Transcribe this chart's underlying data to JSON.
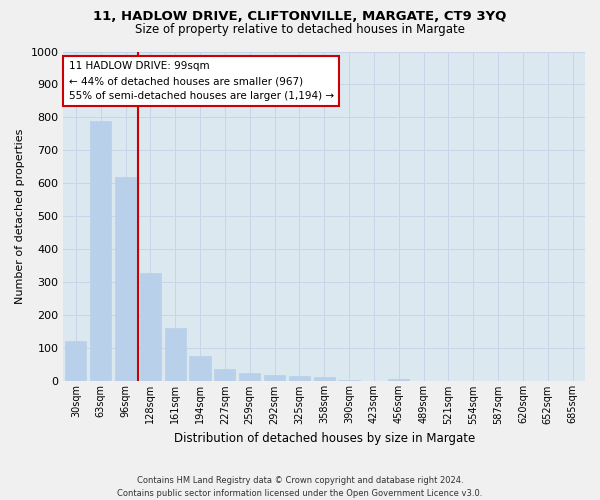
{
  "title1": "11, HADLOW DRIVE, CLIFTONVILLE, MARGATE, CT9 3YQ",
  "title2": "Size of property relative to detached houses in Margate",
  "xlabel": "Distribution of detached houses by size in Margate",
  "ylabel": "Number of detached properties",
  "categories": [
    "30sqm",
    "63sqm",
    "96sqm",
    "128sqm",
    "161sqm",
    "194sqm",
    "227sqm",
    "259sqm",
    "292sqm",
    "325sqm",
    "358sqm",
    "390sqm",
    "423sqm",
    "456sqm",
    "489sqm",
    "521sqm",
    "554sqm",
    "587sqm",
    "620sqm",
    "652sqm",
    "685sqm"
  ],
  "values": [
    122,
    790,
    620,
    328,
    162,
    77,
    38,
    25,
    20,
    15,
    12,
    5,
    0,
    8,
    0,
    0,
    0,
    0,
    0,
    0,
    0
  ],
  "bar_color": "#b8d0ea",
  "red_line_x": 2,
  "annotation_text": "11 HADLOW DRIVE: 99sqm\n← 44% of detached houses are smaller (967)\n55% of semi-detached houses are larger (1,194) →",
  "annotation_box_color": "#ffffff",
  "annotation_box_edge_color": "#cc0000",
  "ylim": [
    0,
    1000
  ],
  "yticks": [
    0,
    100,
    200,
    300,
    400,
    500,
    600,
    700,
    800,
    900,
    1000
  ],
  "grid_color": "#c8d4e8",
  "background_color": "#dce8f0",
  "footer": "Contains HM Land Registry data © Crown copyright and database right 2024.\nContains public sector information licensed under the Open Government Licence v3.0."
}
